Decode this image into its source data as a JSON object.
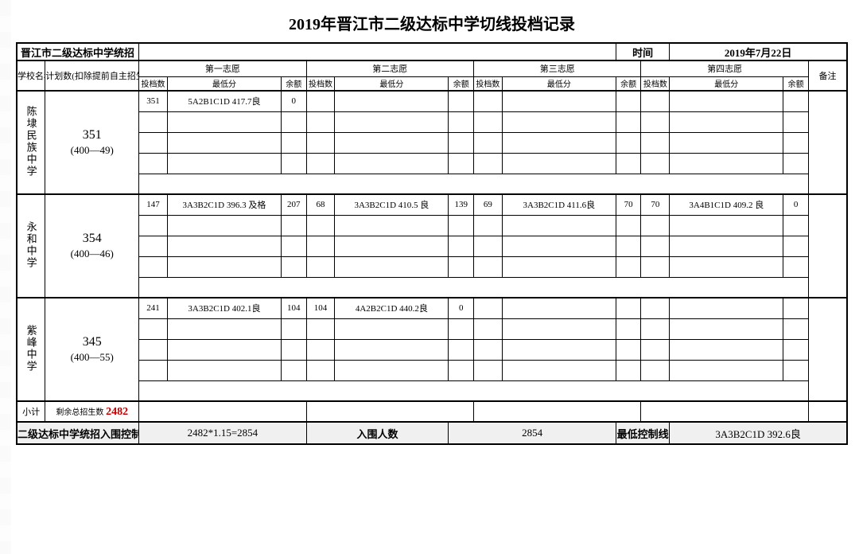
{
  "title": "2019年晋江市二级达标中学切线投档记录",
  "meta": {
    "left_label": "晋江市二级达标中学统招",
    "time_label": "时间",
    "time_value": "2019年7月22日"
  },
  "headers": {
    "school": "学校名称",
    "plan": "计划数(扣除提前自主招生后)",
    "choices": [
      "第一志愿",
      "第二志愿",
      "第三志愿",
      "第四志愿"
    ],
    "remark": "备注",
    "sub": {
      "toudang": "投档数",
      "min": "最低分",
      "remain": "余额"
    }
  },
  "schools": [
    {
      "name": "陈埭民族中学",
      "plan_main": "351",
      "plan_sub": "(400—49)",
      "rows": [
        {
          "c1": {
            "td": "351",
            "min": "5A2B1C1D 417.7良",
            "rm": "0"
          },
          "c2": {
            "td": "",
            "min": "",
            "rm": ""
          },
          "c3": {
            "td": "",
            "min": "",
            "rm": ""
          },
          "c4": {
            "td": "",
            "min": "",
            "rm": ""
          }
        },
        {
          "c1": {
            "td": "",
            "min": "",
            "rm": ""
          },
          "c2": {
            "td": "",
            "min": "",
            "rm": ""
          },
          "c3": {
            "td": "",
            "min": "",
            "rm": ""
          },
          "c4": {
            "td": "",
            "min": "",
            "rm": ""
          }
        },
        {
          "c1": {
            "td": "",
            "min": "",
            "rm": ""
          },
          "c2": {
            "td": "",
            "min": "",
            "rm": ""
          },
          "c3": {
            "td": "",
            "min": "",
            "rm": ""
          },
          "c4": {
            "td": "",
            "min": "",
            "rm": ""
          }
        },
        {
          "c1": {
            "td": "",
            "min": "",
            "rm": ""
          },
          "c2": {
            "td": "",
            "min": "",
            "rm": ""
          },
          "c3": {
            "td": "",
            "min": "",
            "rm": ""
          },
          "c4": {
            "td": "",
            "min": "",
            "rm": ""
          }
        }
      ]
    },
    {
      "name": "永和中学",
      "plan_main": "354",
      "plan_sub": "(400—46)",
      "rows": [
        {
          "c1": {
            "td": "147",
            "min": "3A3B2C1D 396.3 及格",
            "rm": "207"
          },
          "c2": {
            "td": "68",
            "min": "3A3B2C1D 410.5 良",
            "rm": "139"
          },
          "c3": {
            "td": "69",
            "min": "3A3B2C1D 411.6良",
            "rm": "70"
          },
          "c4": {
            "td": "70",
            "min": "3A4B1C1D 409.2 良",
            "rm": "0"
          }
        },
        {
          "c1": {
            "td": "",
            "min": "",
            "rm": ""
          },
          "c2": {
            "td": "",
            "min": "",
            "rm": ""
          },
          "c3": {
            "td": "",
            "min": "",
            "rm": ""
          },
          "c4": {
            "td": "",
            "min": "",
            "rm": ""
          }
        },
        {
          "c1": {
            "td": "",
            "min": "",
            "rm": ""
          },
          "c2": {
            "td": "",
            "min": "",
            "rm": ""
          },
          "c3": {
            "td": "",
            "min": "",
            "rm": ""
          },
          "c4": {
            "td": "",
            "min": "",
            "rm": ""
          }
        },
        {
          "c1": {
            "td": "",
            "min": "",
            "rm": ""
          },
          "c2": {
            "td": "",
            "min": "",
            "rm": ""
          },
          "c3": {
            "td": "",
            "min": "",
            "rm": ""
          },
          "c4": {
            "td": "",
            "min": "",
            "rm": ""
          }
        }
      ]
    },
    {
      "name": "紫峰中学",
      "plan_main": "345",
      "plan_sub": "(400—55)",
      "rows": [
        {
          "c1": {
            "td": "241",
            "min": "3A3B2C1D  402.1良",
            "rm": "104"
          },
          "c2": {
            "td": "104",
            "min": "4A2B2C1D 440.2良",
            "rm": "0"
          },
          "c3": {
            "td": "",
            "min": "",
            "rm": ""
          },
          "c4": {
            "td": "",
            "min": "",
            "rm": ""
          }
        },
        {
          "c1": {
            "td": "",
            "min": "",
            "rm": ""
          },
          "c2": {
            "td": "",
            "min": "",
            "rm": ""
          },
          "c3": {
            "td": "",
            "min": "",
            "rm": ""
          },
          "c4": {
            "td": "",
            "min": "",
            "rm": ""
          }
        },
        {
          "c1": {
            "td": "",
            "min": "",
            "rm": ""
          },
          "c2": {
            "td": "",
            "min": "",
            "rm": ""
          },
          "c3": {
            "td": "",
            "min": "",
            "rm": ""
          },
          "c4": {
            "td": "",
            "min": "",
            "rm": ""
          }
        },
        {
          "c1": {
            "td": "",
            "min": "",
            "rm": ""
          },
          "c2": {
            "td": "",
            "min": "",
            "rm": ""
          },
          "c3": {
            "td": "",
            "min": "",
            "rm": ""
          },
          "c4": {
            "td": "",
            "min": "",
            "rm": ""
          }
        }
      ]
    }
  ],
  "subtotal": {
    "label": "小计",
    "remain_label": "剩余总招生数",
    "remain_value": "2482"
  },
  "footer": {
    "l1": "二级达标中学统招入围控制人数",
    "l2": "2482*1.15=2854",
    "l3": "入围人数",
    "l4": "2854",
    "l5": "最低控制线",
    "l6": "3A3B2C1D 392.6良"
  },
  "style": {
    "colwidths": {
      "school": 34,
      "plan": 112,
      "td": 34,
      "min": 136,
      "rm": 30,
      "remark": 46
    }
  }
}
